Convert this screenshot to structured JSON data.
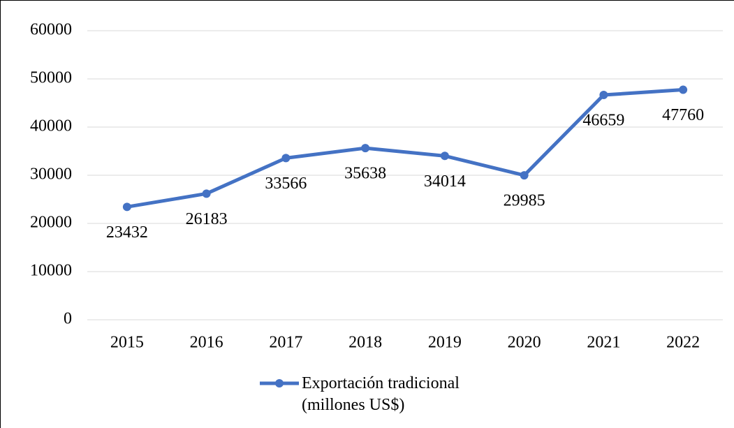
{
  "chart_data": {
    "type": "line",
    "categories": [
      "2015",
      "2016",
      "2017",
      "2018",
      "2019",
      "2020",
      "2021",
      "2022"
    ],
    "series": [
      {
        "name": "Exportación tradicional (millones US$)",
        "color": "#4472c4",
        "values": [
          23432,
          26183,
          33566,
          35638,
          34014,
          29985,
          46659,
          47760
        ]
      }
    ],
    "ylim": [
      0,
      60000
    ],
    "yticks": [
      0,
      10000,
      20000,
      30000,
      40000,
      50000,
      60000
    ],
    "grid": true,
    "legend": "bottom"
  }
}
